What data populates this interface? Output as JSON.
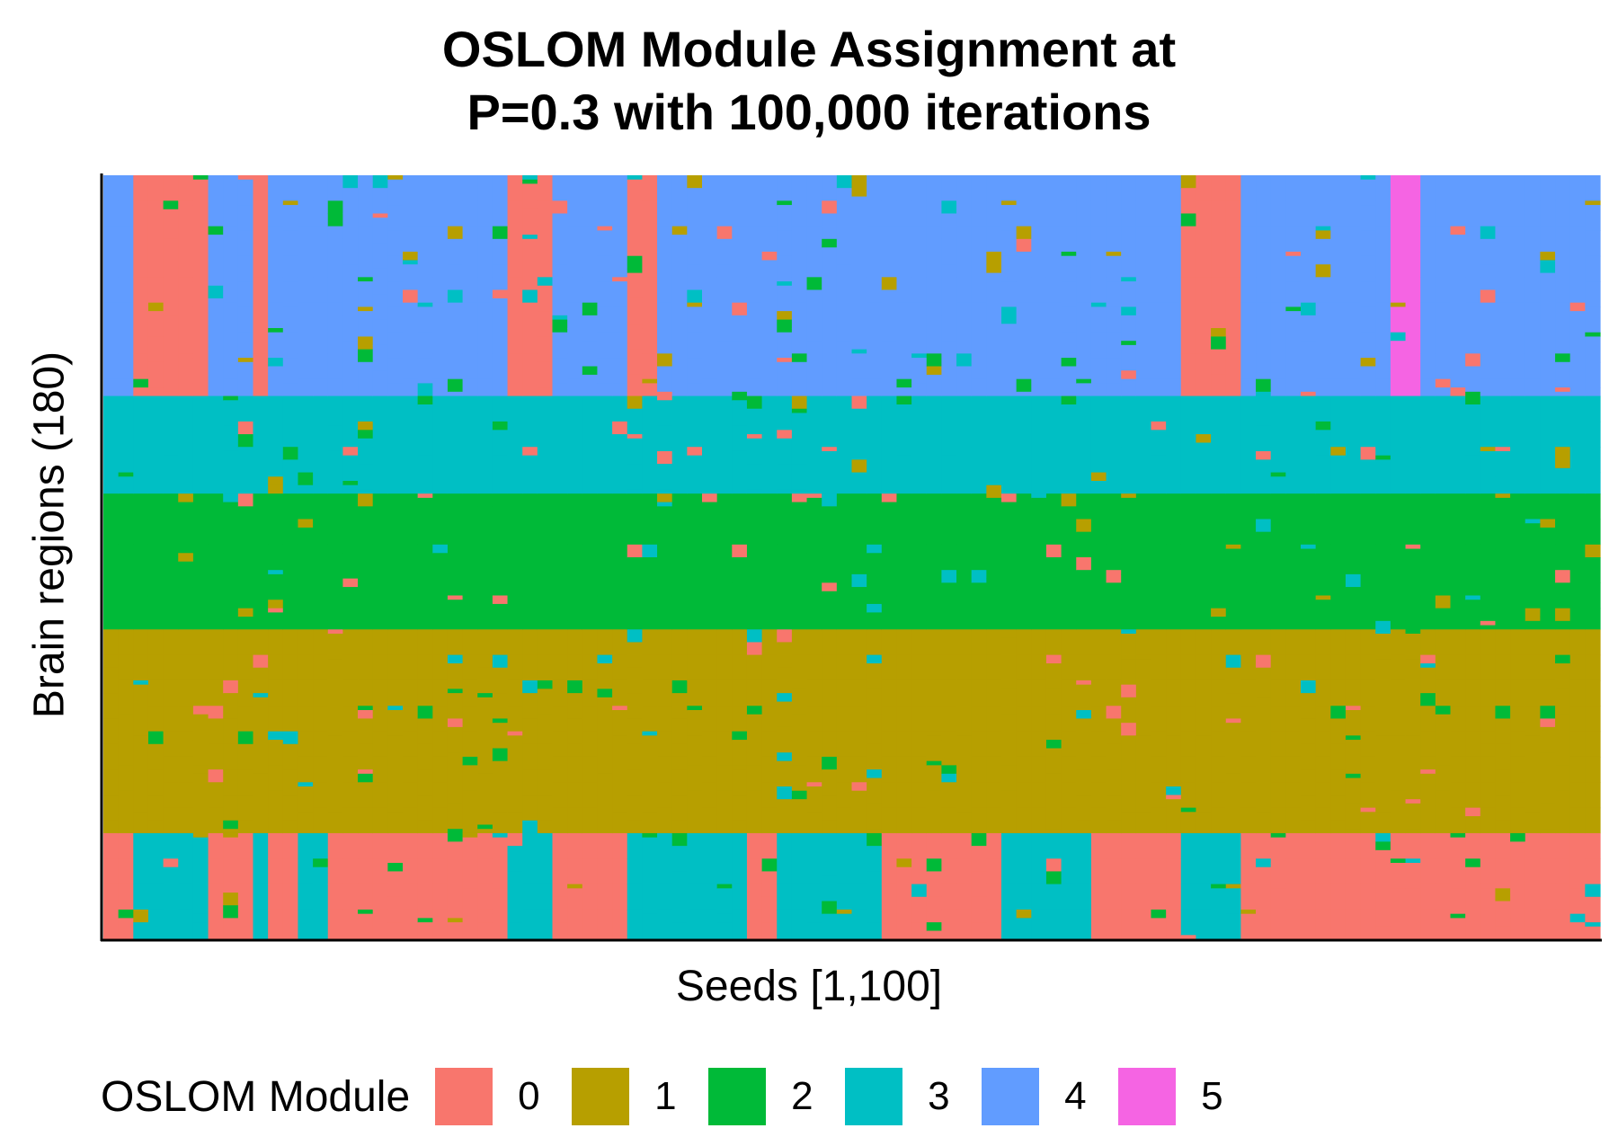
{
  "chart_data": {
    "type": "heatmap",
    "title": [
      "OSLOM Module Assignment at",
      "P=0.3 with 100,000 iterations"
    ],
    "xlabel": "Seeds [1,100]",
    "ylabel": "Brain regions (180)",
    "n_cols": 100,
    "n_rows": 180,
    "legend_title": "OSLOM Module",
    "modules": [
      {
        "label": "0",
        "color": "#F8766D"
      },
      {
        "label": "1",
        "color": "#B79F00"
      },
      {
        "label": "2",
        "color": "#00BA38"
      },
      {
        "label": "3",
        "color": "#00BFC4"
      },
      {
        "label": "4",
        "color": "#619CFF"
      },
      {
        "label": "5",
        "color": "#F564E3"
      }
    ],
    "column_groups": [
      0,
      0,
      1,
      1,
      1,
      1,
      1,
      0,
      0,
      0,
      1,
      2,
      2,
      3,
      3,
      2,
      0,
      2,
      2,
      4,
      4,
      4,
      4,
      4,
      2,
      2,
      2,
      1,
      1,
      1,
      0,
      0,
      0,
      0,
      0,
      1,
      1,
      3,
      3,
      3,
      3,
      3,
      3,
      2,
      2,
      3,
      3,
      3,
      3,
      3,
      3,
      3,
      0,
      0,
      0,
      0,
      0,
      0,
      0,
      0,
      3,
      3,
      3,
      3,
      3,
      3,
      2,
      2,
      2,
      2,
      2,
      2,
      1,
      1,
      1,
      1,
      4,
      4,
      4,
      4,
      4,
      4,
      4,
      4,
      4,
      4,
      5,
      5,
      4,
      4,
      4,
      4,
      4,
      4,
      4,
      4,
      4,
      4,
      2,
      0
    ],
    "row_bands": [
      {
        "rows": [
          0,
          52
        ],
        "group_modules": [
          4,
          0,
          4,
          4,
          4,
          5
        ]
      },
      {
        "rows": [
          52,
          75
        ],
        "group_modules": [
          3,
          3,
          3,
          3,
          3,
          3
        ]
      },
      {
        "rows": [
          75,
          107
        ],
        "group_modules": [
          2,
          2,
          2,
          2,
          2,
          2
        ]
      },
      {
        "rows": [
          107,
          155
        ],
        "group_modules": [
          1,
          1,
          1,
          1,
          1,
          1
        ]
      },
      {
        "rows": [
          155,
          180
        ],
        "group_modules": [
          0,
          3,
          0,
          3,
          0,
          0
        ]
      }
    ],
    "noise_level": 0.12,
    "grid": false,
    "legend_position": "bottom"
  }
}
